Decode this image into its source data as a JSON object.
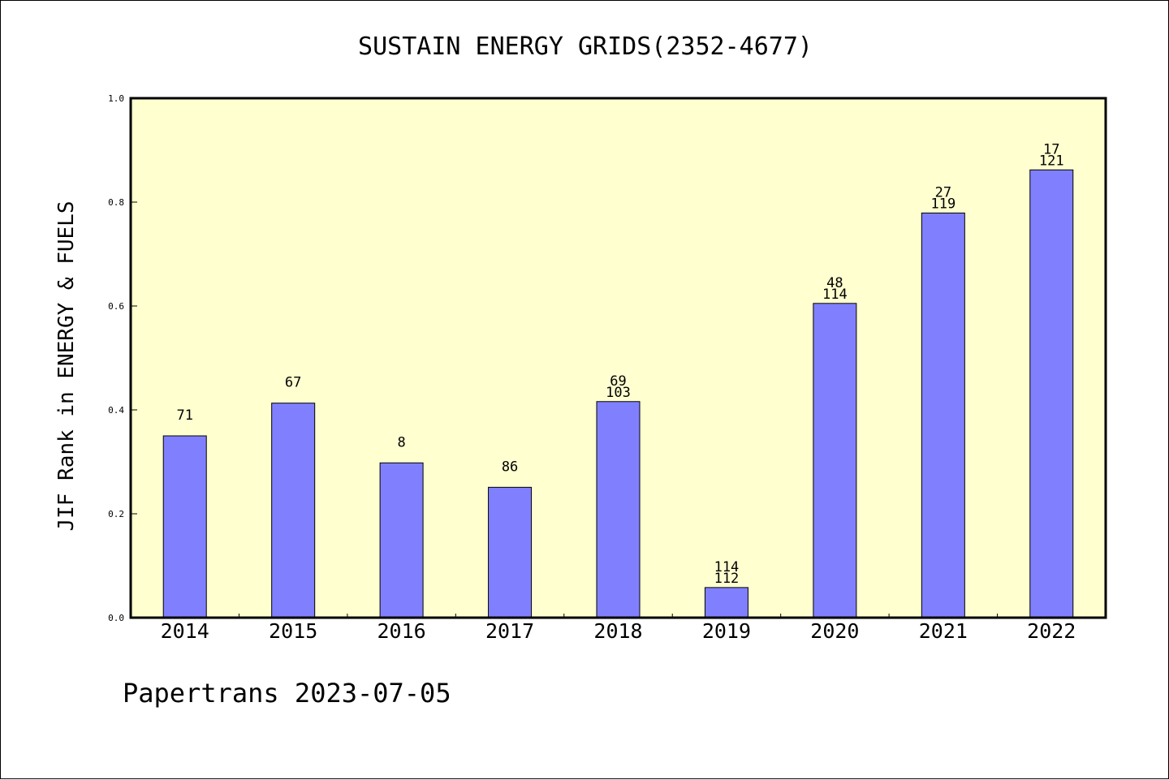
{
  "chart_data": {
    "type": "bar",
    "title": "SUSTAIN ENERGY GRIDS(2352-4677)",
    "xlabel": "",
    "ylabel": "JIF Rank in ENERGY & FUELS",
    "categories": [
      "2014",
      "2015",
      "2016",
      "2017",
      "2018",
      "2019",
      "2020",
      "2021",
      "2022"
    ],
    "values": [
      0.35,
      0.413,
      0.298,
      0.251,
      0.416,
      0.058,
      0.605,
      0.779,
      0.862
    ],
    "labels_top": [
      "",
      "",
      "",
      "",
      "69",
      "114",
      "48",
      "27",
      "17"
    ],
    "labels_bottom": [
      "71",
      "67",
      "8",
      "86",
      "103",
      "112",
      "114",
      "119",
      "121"
    ],
    "ylim": [
      0,
      1.0
    ],
    "yticks": [
      "0.0",
      "0.2",
      "0.4",
      "0.6",
      "0.8",
      "1.0"
    ],
    "grid": false,
    "colors": {
      "bar": "#8080ff",
      "plot_background": "#ffffd0"
    }
  },
  "footer": "Papertrans 2023-07-05"
}
